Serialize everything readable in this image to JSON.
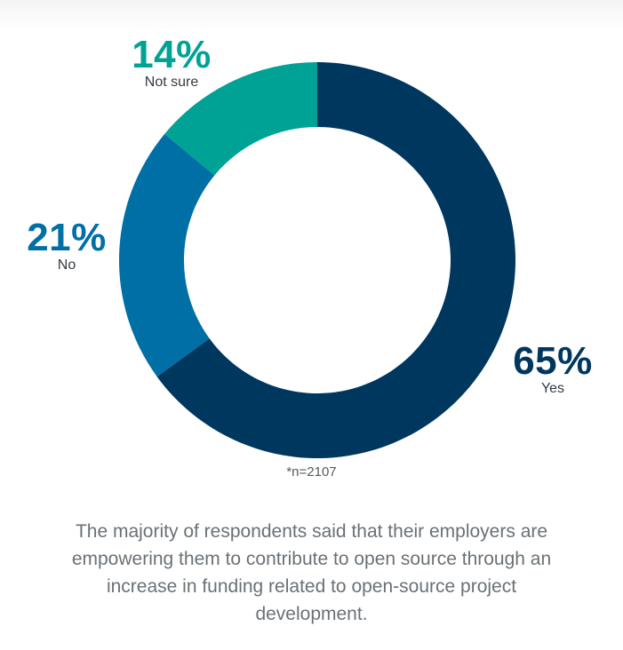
{
  "chart_data": {
    "type": "pie",
    "subtype": "donut",
    "slices": [
      {
        "label": "Yes",
        "value": 65,
        "value_label": "65%",
        "color": "#00375f"
      },
      {
        "label": "No",
        "value": 21,
        "value_label": "21%",
        "color": "#006fa6"
      },
      {
        "label": "Not sure",
        "value": 14,
        "value_label": "14%",
        "color": "#00a295"
      }
    ],
    "note": "*n=2107"
  },
  "caption": "The majority of respondents said that their employers are empowering them to contribute to open source through an increase in funding related to open-source project development."
}
